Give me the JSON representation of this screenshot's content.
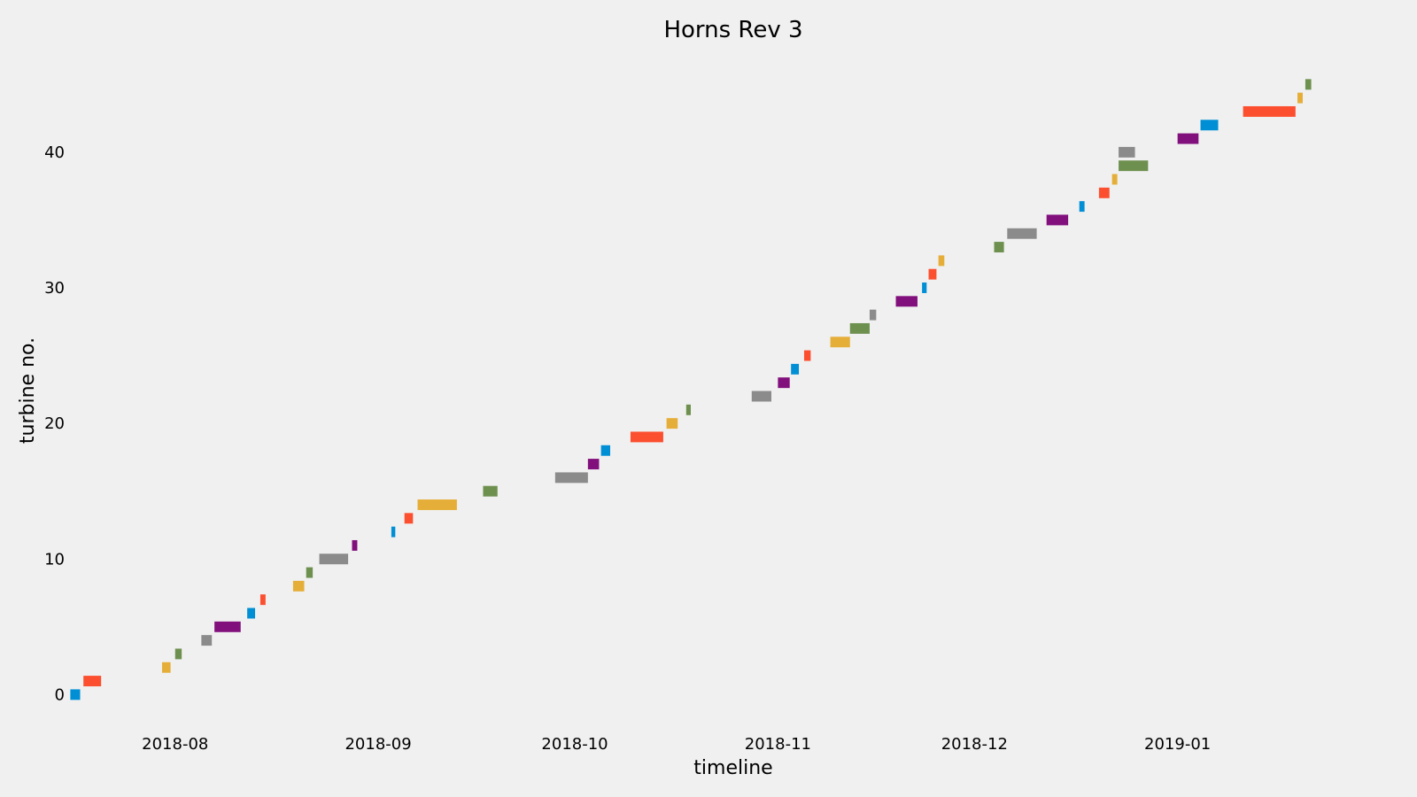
{
  "chart_data": {
    "type": "bar",
    "orientation": "horizontal-timeline",
    "title": "Horns Rev 3",
    "xlabel": "timeline",
    "ylabel": "turbine no.",
    "grid": false,
    "legend": "none",
    "xlim": [
      "2018-07-15",
      "2019-01-27"
    ],
    "ylim": [
      -2,
      46
    ],
    "x_ticks": [
      "2018-08-01",
      "2018-09-01",
      "2018-10-01",
      "2018-11-01",
      "2018-12-01",
      "2019-01-01"
    ],
    "x_tick_labels": [
      "2018-08",
      "2018-09",
      "2018-10",
      "2018-11",
      "2018-12",
      "2019-01"
    ],
    "y_ticks": [
      0,
      10,
      20,
      30,
      40
    ],
    "y_tick_labels": [
      "0",
      "10",
      "20",
      "30",
      "40"
    ],
    "colors": [
      "#008fd5",
      "#fc4f30",
      "#e5ae38",
      "#6d904f",
      "#8b8b8b",
      "#810f7c"
    ],
    "tasks": [
      {
        "turbine": 0,
        "start": "2018-07-16",
        "end": "2018-07-17.5"
      },
      {
        "turbine": 1,
        "start": "2018-07-18",
        "end": "2018-07-20.7"
      },
      {
        "turbine": 2,
        "start": "2018-07-30",
        "end": "2018-07-31.3"
      },
      {
        "turbine": 3,
        "start": "2018-08-01",
        "end": "2018-08-02"
      },
      {
        "turbine": 4,
        "start": "2018-08-05",
        "end": "2018-08-06.6"
      },
      {
        "turbine": 5,
        "start": "2018-08-07",
        "end": "2018-08-11"
      },
      {
        "turbine": 6,
        "start": "2018-08-12",
        "end": "2018-08-13.2"
      },
      {
        "turbine": 7,
        "start": "2018-08-14",
        "end": "2018-08-14.8"
      },
      {
        "turbine": 8,
        "start": "2018-08-19",
        "end": "2018-08-20.7"
      },
      {
        "turbine": 9,
        "start": "2018-08-21",
        "end": "2018-08-22"
      },
      {
        "turbine": 10,
        "start": "2018-08-23",
        "end": "2018-08-27.4"
      },
      {
        "turbine": 11,
        "start": "2018-08-28",
        "end": "2018-08-28.8"
      },
      {
        "turbine": 12,
        "start": "2018-09-03",
        "end": "2018-09-03.6"
      },
      {
        "turbine": 13,
        "start": "2018-09-05",
        "end": "2018-09-06.3"
      },
      {
        "turbine": 14,
        "start": "2018-09-07",
        "end": "2018-09-13"
      },
      {
        "turbine": 15,
        "start": "2018-09-17",
        "end": "2018-09-19.2"
      },
      {
        "turbine": 16,
        "start": "2018-09-28",
        "end": "2018-10-03"
      },
      {
        "turbine": 17,
        "start": "2018-10-03",
        "end": "2018-10-04.7"
      },
      {
        "turbine": 18,
        "start": "2018-10-05",
        "end": "2018-10-06.4"
      },
      {
        "turbine": 19,
        "start": "2018-10-09.5",
        "end": "2018-10-14.5"
      },
      {
        "turbine": 20,
        "start": "2018-10-15",
        "end": "2018-10-16.7"
      },
      {
        "turbine": 21,
        "start": "2018-10-18",
        "end": "2018-10-18.7"
      },
      {
        "turbine": 22,
        "start": "2018-10-28",
        "end": "2018-10-31"
      },
      {
        "turbine": 23,
        "start": "2018-11-01",
        "end": "2018-11-02.8"
      },
      {
        "turbine": 24,
        "start": "2018-11-03",
        "end": "2018-11-04.2"
      },
      {
        "turbine": 25,
        "start": "2018-11-05",
        "end": "2018-11-06"
      },
      {
        "turbine": 26,
        "start": "2018-11-09",
        "end": "2018-11-12"
      },
      {
        "turbine": 27,
        "start": "2018-11-12",
        "end": "2018-11-15"
      },
      {
        "turbine": 28,
        "start": "2018-11-15",
        "end": "2018-11-16"
      },
      {
        "turbine": 29,
        "start": "2018-11-19",
        "end": "2018-11-22.3"
      },
      {
        "turbine": 30,
        "start": "2018-11-23",
        "end": "2018-11-23.7"
      },
      {
        "turbine": 31,
        "start": "2018-11-24",
        "end": "2018-11-25.2"
      },
      {
        "turbine": 32,
        "start": "2018-11-25.5",
        "end": "2018-11-26.4"
      },
      {
        "turbine": 33,
        "start": "2018-12-04",
        "end": "2018-12-05.5"
      },
      {
        "turbine": 34,
        "start": "2018-12-06",
        "end": "2018-12-10.5"
      },
      {
        "turbine": 35,
        "start": "2018-12-12",
        "end": "2018-12-15.3"
      },
      {
        "turbine": 36,
        "start": "2018-12-17",
        "end": "2018-12-17.8"
      },
      {
        "turbine": 37,
        "start": "2018-12-20",
        "end": "2018-12-21.6"
      },
      {
        "turbine": 38,
        "start": "2018-12-22",
        "end": "2018-12-22.8"
      },
      {
        "turbine": 39,
        "start": "2018-12-23",
        "end": "2018-12-27.5"
      },
      {
        "turbine": 40,
        "start": "2018-12-23",
        "end": "2018-12-25.5"
      },
      {
        "turbine": 41,
        "start": "2019-01-01",
        "end": "2019-01-04.2"
      },
      {
        "turbine": 42,
        "start": "2019-01-04.5",
        "end": "2019-01-07.2"
      },
      {
        "turbine": 43,
        "start": "2019-01-11",
        "end": "2019-01-19"
      },
      {
        "turbine": 44,
        "start": "2019-01-19.3",
        "end": "2019-01-20.1"
      },
      {
        "turbine": 45,
        "start": "2019-01-20.5",
        "end": "2019-01-21.4"
      }
    ]
  }
}
